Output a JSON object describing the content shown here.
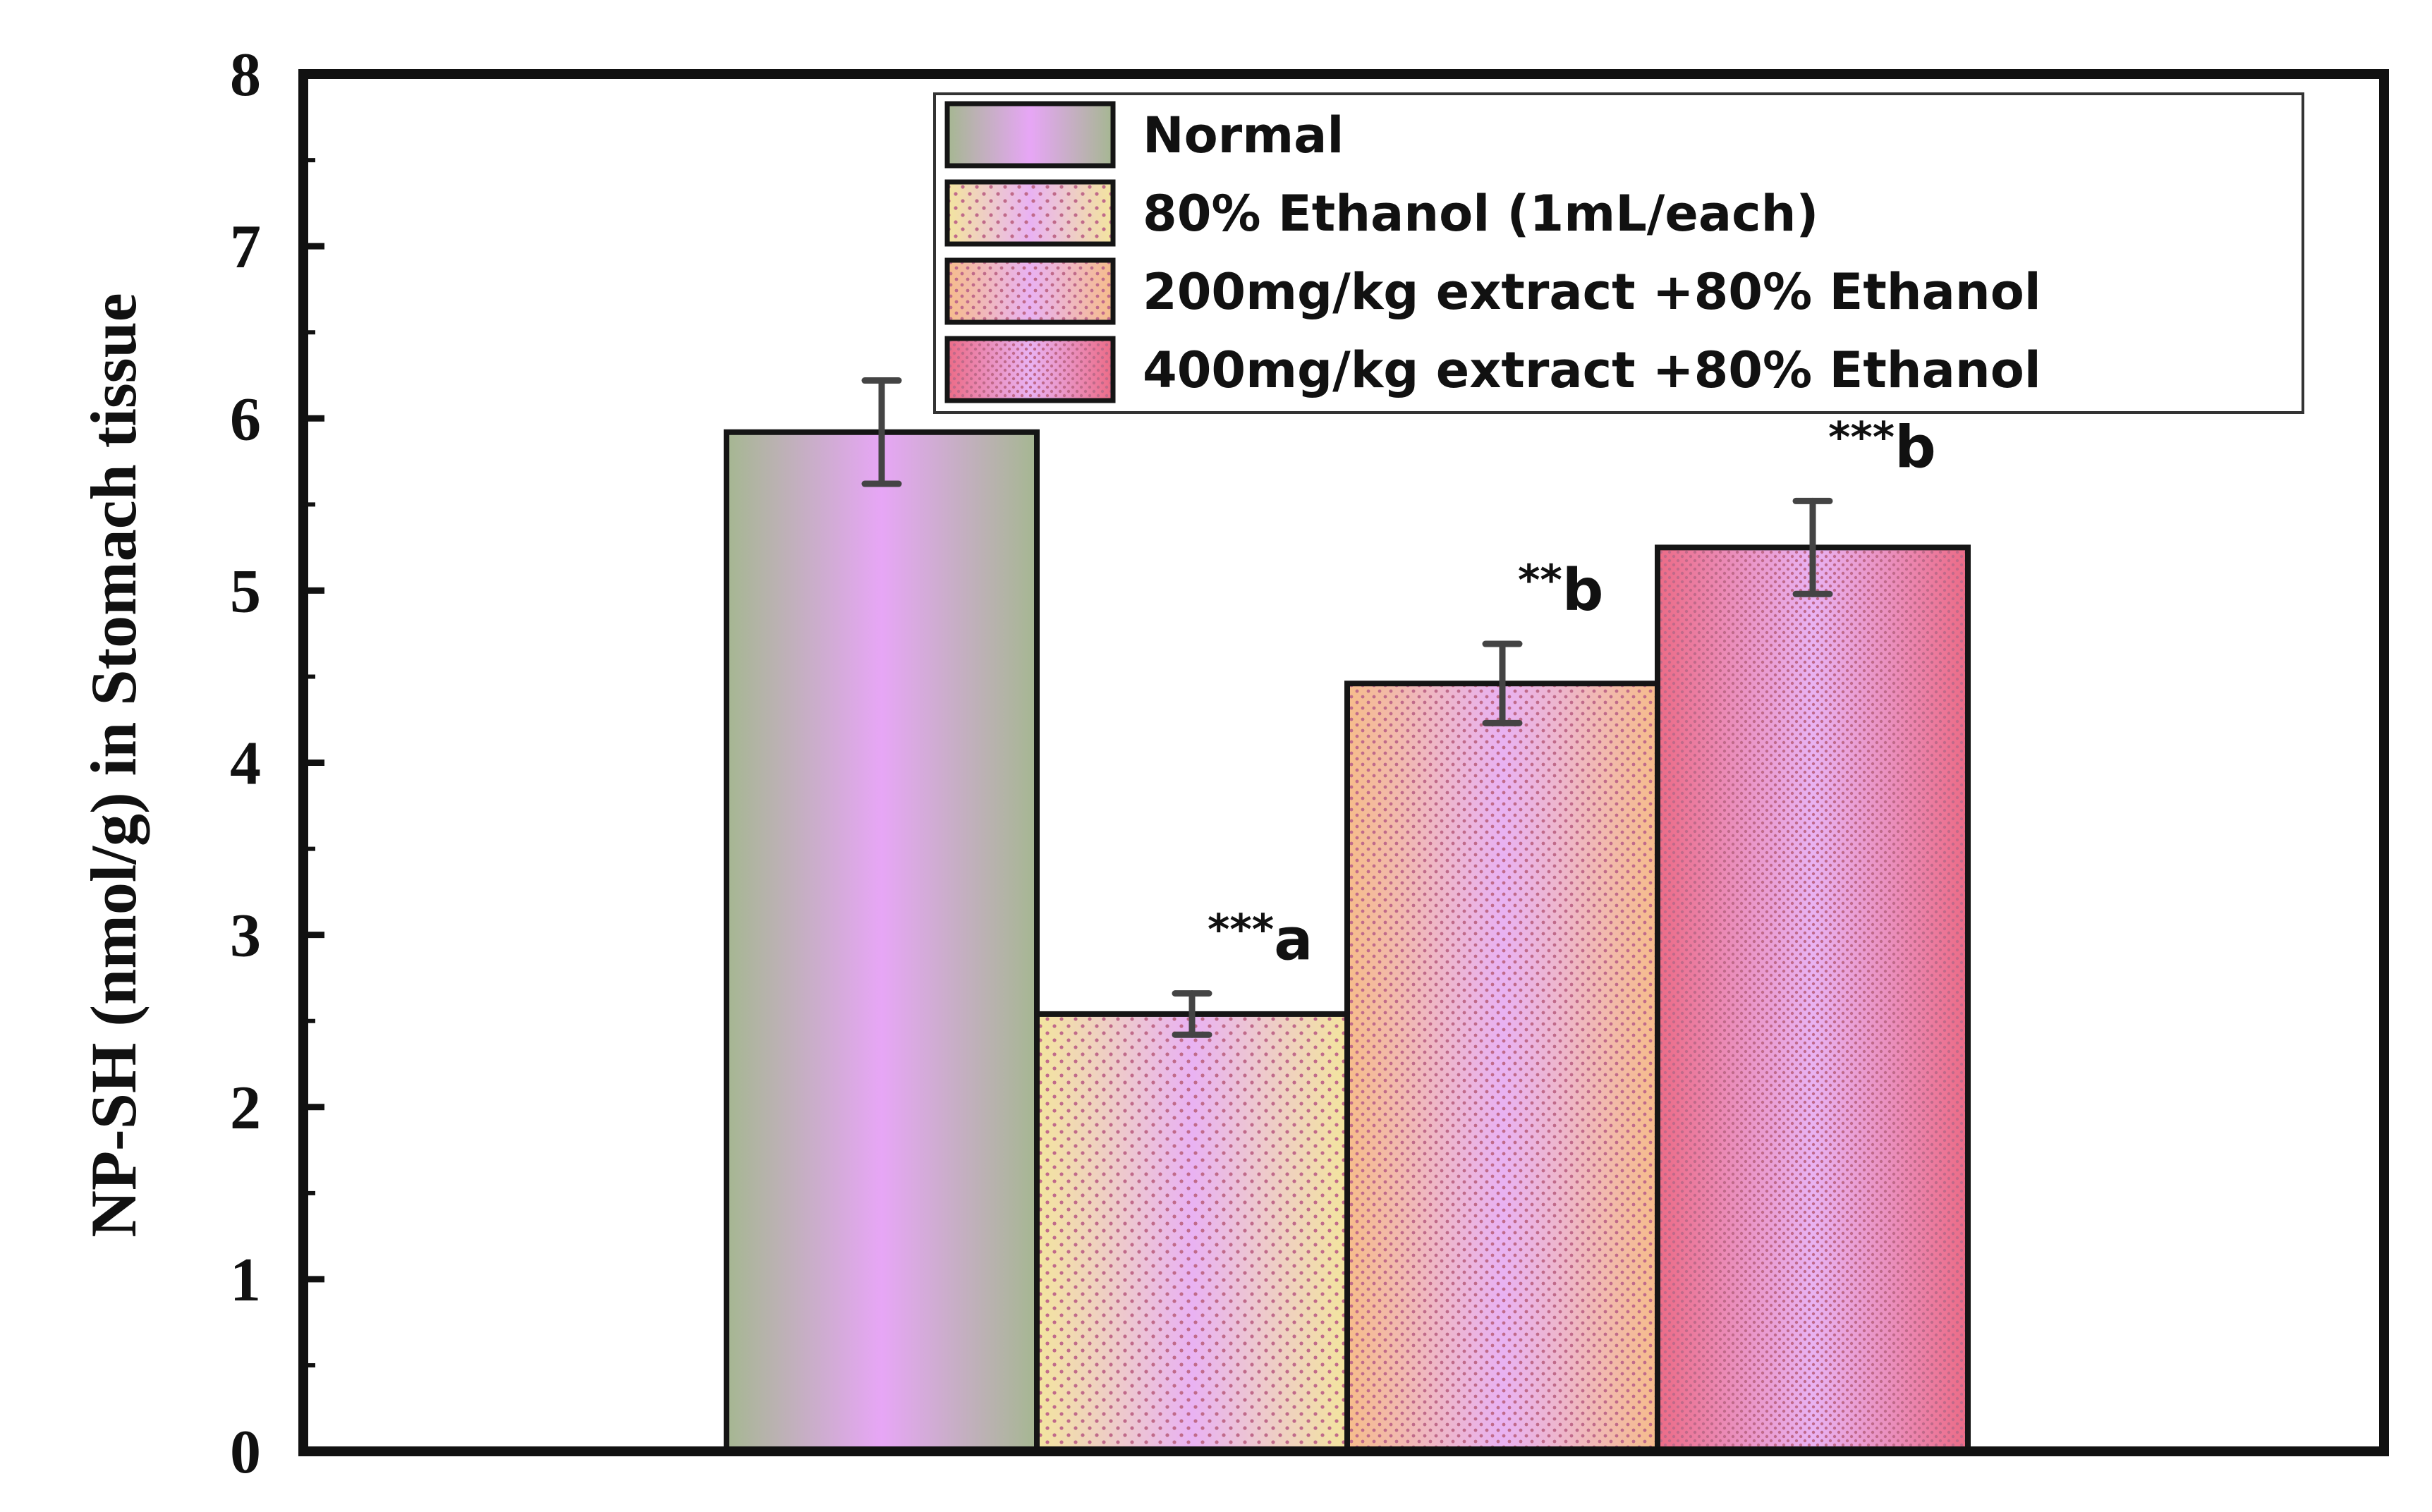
{
  "chart_data": {
    "type": "bar",
    "title": "",
    "xlabel": "",
    "ylabel": "NP-SH (nmol/g) in Stomach tissue",
    "ylim": [
      0,
      8
    ],
    "yticks": [
      "0",
      "1",
      "2",
      "3",
      "4",
      "5",
      "6",
      "7",
      "8"
    ],
    "grid": false,
    "legend_position": "top-right",
    "categories": [
      "Normal",
      "80% Ethanol (1mL/each)",
      "200mg/kg extract +80% Ethanol",
      "400mg/kg extract +80% Ethanol"
    ],
    "values": [
      5.92,
      2.54,
      4.46,
      5.25
    ],
    "errors": [
      0.3,
      0.12,
      0.23,
      0.27
    ],
    "annotations": [
      {
        "stars": "",
        "letter": ""
      },
      {
        "stars": "***",
        "letter": "a"
      },
      {
        "stars": "**",
        "letter": "b"
      },
      {
        "stars": "***",
        "letter": "b"
      }
    ],
    "colors": {
      "normal_edge": "#a5b791",
      "normal_center": "#e7a6f6",
      "ethanol_edge": "#f3e59e",
      "extract200_edge": "#f6bd8b",
      "extract400_edge": "#ec6b86",
      "pink_center": "#e9b2f3",
      "dot": "#c06a8a",
      "error_bar": "#444444",
      "axis": "#111111"
    }
  }
}
